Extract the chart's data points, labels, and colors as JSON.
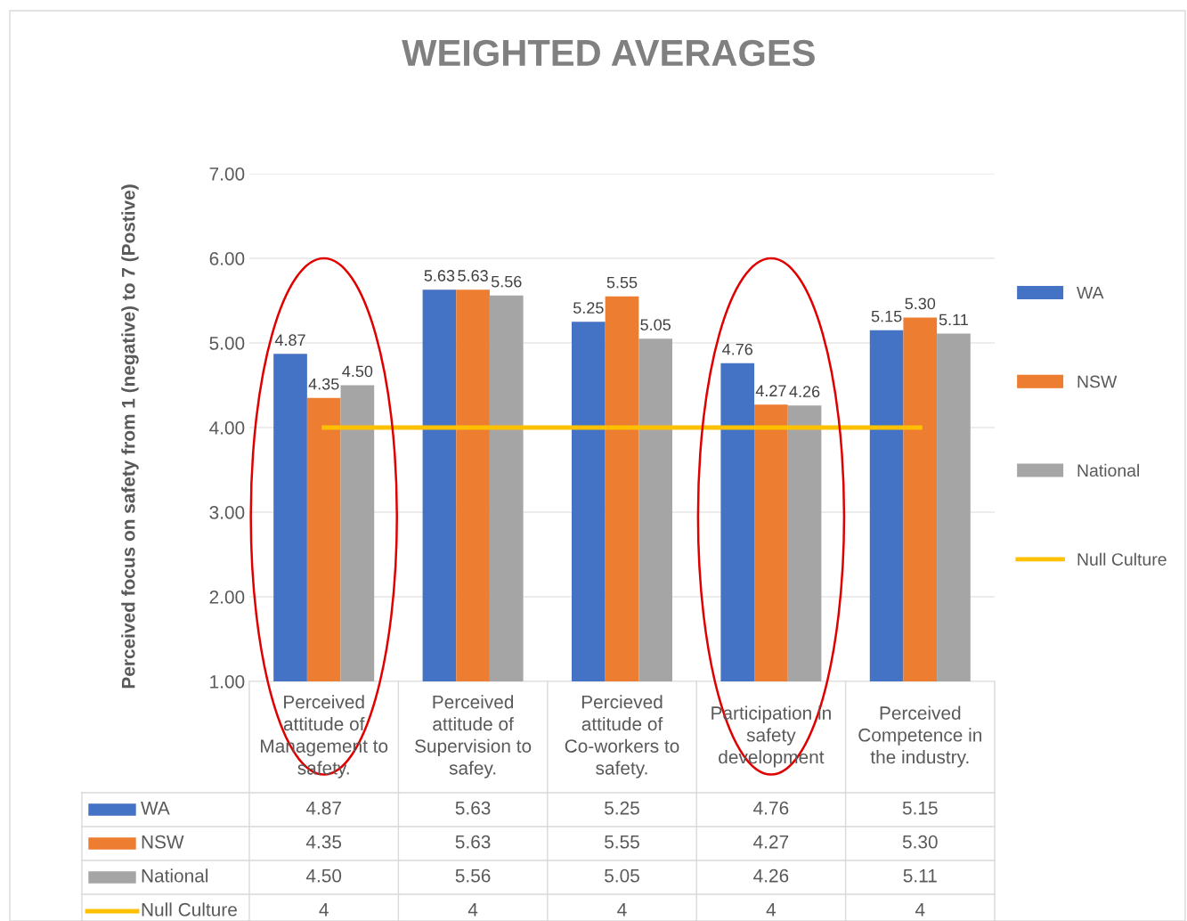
{
  "chart_data": {
    "type": "bar",
    "title": "WEIGHTED AVERAGES",
    "ylabel": "Perceived focus on safety from 1 (negative) to 7 (Postive)",
    "categories": [
      "Perceived attitude of Management to safety.",
      "Perceived attitude of Supervision to safey.",
      "Percieved attitude of Co-workers to safety.",
      "Participation in safety development",
      "Perceived Competence in the industry."
    ],
    "series": [
      {
        "name": "WA",
        "color": "#4472c4",
        "values": [
          4.87,
          5.63,
          5.25,
          4.76,
          5.15
        ],
        "value_labels": [
          "4.87",
          "5.63",
          "5.25",
          "4.76",
          "5.15"
        ]
      },
      {
        "name": "NSW",
        "color": "#ed7d31",
        "values": [
          4.35,
          5.63,
          5.55,
          4.27,
          5.3
        ],
        "value_labels": [
          "4.35",
          "5.63",
          "5.55",
          "4.27",
          "5.30"
        ]
      },
      {
        "name": "National",
        "color": "#a5a5a5",
        "values": [
          4.5,
          5.56,
          5.05,
          4.26,
          5.11
        ],
        "value_labels": [
          "4.50",
          "5.56",
          "5.05",
          "4.26",
          "5.11"
        ]
      },
      {
        "name": "Null Culture",
        "type": "line",
        "color": "#ffc000",
        "values": [
          4,
          4,
          4,
          4,
          4
        ],
        "value_labels": [
          "4",
          "4",
          "4",
          "4",
          "4"
        ]
      }
    ],
    "ylim": [
      1,
      7
    ],
    "yticks": [
      {
        "value": 1,
        "label": "1.00"
      },
      {
        "value": 2,
        "label": "2.00"
      },
      {
        "value": 3,
        "label": "3.00"
      },
      {
        "value": 4,
        "label": "4.00"
      },
      {
        "value": 5,
        "label": "5.00"
      },
      {
        "value": 6,
        "label": "6.00"
      },
      {
        "value": 7,
        "label": "7.00"
      }
    ],
    "grid": "y",
    "legend": "right"
  }
}
